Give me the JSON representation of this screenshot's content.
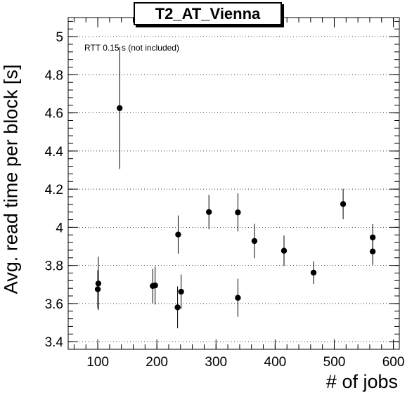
{
  "chart_data": {
    "type": "scatter",
    "title": "T2_AT_Vienna",
    "xlabel": "# of jobs",
    "ylabel": "Avg. read time per block [s]",
    "annotation": "RTT 0.15 s (not included)",
    "xlim": [
      50,
      610
    ],
    "ylim": [
      3.36,
      5.1
    ],
    "x_ticks": [
      100,
      200,
      300,
      400,
      500,
      600
    ],
    "y_ticks": [
      3.4,
      3.6,
      3.8,
      4,
      4.2,
      4.4,
      4.6,
      4.8,
      5
    ],
    "grid": "horizontal-dotted",
    "points": [
      {
        "x": 100,
        "y": 3.675,
        "err": 0.1
      },
      {
        "x": 101,
        "y": 3.705,
        "err": 0.14
      },
      {
        "x": 137,
        "y": 4.625,
        "err": 0.32
      },
      {
        "x": 193,
        "y": 3.692,
        "err": 0.09
      },
      {
        "x": 197,
        "y": 3.695,
        "err": 0.1
      },
      {
        "x": 235,
        "y": 3.58,
        "err": 0.11
      },
      {
        "x": 236,
        "y": 3.962,
        "err": 0.1
      },
      {
        "x": 241,
        "y": 3.662,
        "err": 0.09
      },
      {
        "x": 288,
        "y": 4.08,
        "err": 0.09
      },
      {
        "x": 337,
        "y": 4.078,
        "err": 0.1
      },
      {
        "x": 337,
        "y": 3.63,
        "err": 0.1
      },
      {
        "x": 365,
        "y": 3.928,
        "err": 0.09
      },
      {
        "x": 415,
        "y": 3.877,
        "err": 0.08
      },
      {
        "x": 465,
        "y": 3.762,
        "err": 0.06
      },
      {
        "x": 515,
        "y": 4.122,
        "err": 0.08
      },
      {
        "x": 565,
        "y": 3.947,
        "err": 0.07
      },
      {
        "x": 565,
        "y": 3.873,
        "err": 0.07
      }
    ]
  }
}
